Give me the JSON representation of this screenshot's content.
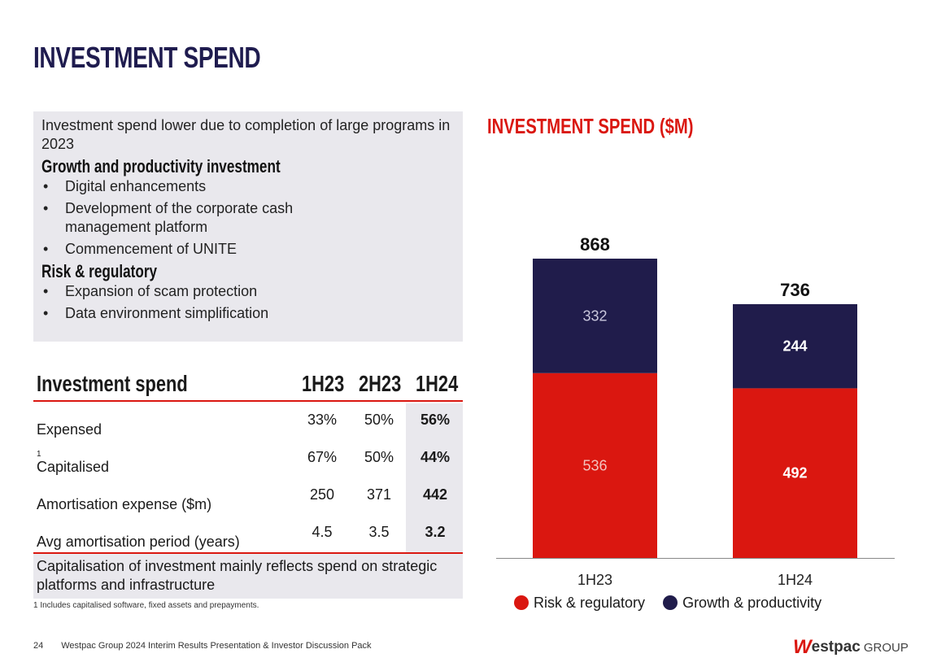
{
  "page": {
    "title": "INVESTMENT SPEND",
    "page_number": "24",
    "footer": "Westpac Group 2024 Interim Results Presentation & Investor Discussion Pack",
    "logo_text": "Westpac",
    "logo_suffix": "GROUP"
  },
  "summary": {
    "intro": "Investment spend lower due to completion of large programs in 2023",
    "sections": [
      {
        "heading": "Growth and productivity investment",
        "items": [
          "Digital enhancements",
          "Development of the corporate cash management platform",
          "Commencement of UNITE"
        ]
      },
      {
        "heading": "Risk & regulatory",
        "items": [
          "Expansion of scam protection",
          "Data environment simplification"
        ]
      }
    ]
  },
  "table": {
    "headers": [
      "Investment spend",
      "1H23",
      "2H23",
      "1H24"
    ],
    "rows": [
      {
        "label": "Expensed",
        "sup": "",
        "values": [
          "33%",
          "50%",
          "56%"
        ]
      },
      {
        "label": "Capitalised",
        "sup": "1",
        "values": [
          "67%",
          "50%",
          "44%"
        ]
      },
      {
        "label": "Amortisation expense ($m)",
        "sup": "",
        "values": [
          "250",
          "371",
          "442"
        ]
      },
      {
        "label": "Avg amortisation period (years)",
        "sup": "",
        "values": [
          "4.5",
          "3.5",
          "3.2"
        ]
      }
    ],
    "note": "Capitalisation of investment mainly reflects spend on strategic platforms and infrastructure",
    "footnote": "1 Includes capitalised software, fixed assets and prepayments."
  },
  "chart_data": {
    "type": "bar",
    "stacked": true,
    "title": "INVESTMENT SPEND ($M)",
    "categories": [
      "1H23",
      "1H24"
    ],
    "series": [
      {
        "name": "Risk & regulatory",
        "values": [
          536,
          492
        ],
        "color": "#da1710"
      },
      {
        "name": "Growth & productivity",
        "values": [
          332,
          244
        ],
        "color": "#201c4b"
      }
    ],
    "totals": [
      868,
      736
    ],
    "legend": "bottom",
    "grid": false
  }
}
